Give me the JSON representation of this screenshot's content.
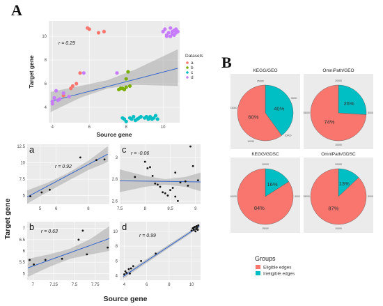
{
  "figure": {
    "label_a": "A",
    "label_b": "B",
    "bottom_xlabel": "Source gene",
    "bottom_ylabel": "Target gene"
  },
  "chart_data": [
    {
      "id": "main",
      "type": "scatter",
      "xlabel": "Source gene",
      "ylabel": "Target gene",
      "xlim": [
        3.8,
        10.9
      ],
      "ylim": [
        2.7,
        11.3
      ],
      "xticks": [
        4,
        6,
        8,
        10
      ],
      "yticks": [
        4,
        6,
        8,
        10
      ],
      "annotation": "r = 0.29",
      "legend_title": "Datasets",
      "legend_position": "right",
      "series": [
        {
          "name": "a",
          "color": "#f8766d",
          "points": [
            [
              5.9,
              10.7
            ],
            [
              6.0,
              10.6
            ],
            [
              6.5,
              10.3
            ],
            [
              6.8,
              10.4
            ],
            [
              5.0,
              5.6
            ],
            [
              5.1,
              5.8
            ],
            [
              5.3,
              6.0
            ],
            [
              5.5,
              6.9
            ],
            [
              4.6,
              5.0
            ]
          ]
        },
        {
          "name": "b",
          "color": "#7cae00",
          "points": [
            [
              7.6,
              5.5
            ],
            [
              7.7,
              5.6
            ],
            [
              7.8,
              5.6
            ],
            [
              7.9,
              5.5
            ],
            [
              8.0,
              6.4
            ],
            [
              8.1,
              7.0
            ],
            [
              8.2,
              5.8
            ],
            [
              8.0,
              5.7
            ]
          ]
        },
        {
          "name": "c",
          "color": "#00bfc4",
          "points": [
            [
              7.8,
              3.1
            ],
            [
              7.9,
              3.0
            ],
            [
              8.0,
              2.8
            ],
            [
              8.2,
              3.1
            ],
            [
              8.4,
              3.2
            ],
            [
              8.5,
              2.9
            ],
            [
              8.6,
              3.0
            ],
            [
              8.8,
              3.2
            ],
            [
              9.0,
              3.1
            ],
            [
              9.2,
              3.0
            ],
            [
              9.3,
              3.2
            ],
            [
              9.4,
              3.0
            ],
            [
              9.5,
              3.1
            ],
            [
              9.6,
              3.3
            ],
            [
              9.7,
              3.0
            ],
            [
              8.3,
              3.0
            ],
            [
              8.7,
              3.1
            ],
            [
              9.1,
              3.2
            ]
          ]
        },
        {
          "name": "d",
          "color": "#c77cff",
          "points": [
            [
              4.0,
              4.3
            ],
            [
              4.0,
              4.5
            ],
            [
              4.1,
              4.8
            ],
            [
              4.2,
              5.4
            ],
            [
              4.3,
              4.6
            ],
            [
              4.4,
              4.7
            ],
            [
              4.6,
              5.2
            ],
            [
              4.9,
              4.9
            ],
            [
              5.7,
              6.9
            ],
            [
              7.5,
              6.9
            ],
            [
              10.1,
              10.6
            ],
            [
              10.2,
              10.1
            ],
            [
              10.3,
              10.3
            ],
            [
              10.4,
              10.0
            ],
            [
              10.5,
              10.4
            ],
            [
              10.5,
              10.2
            ],
            [
              10.6,
              10.5
            ],
            [
              10.7,
              10.3
            ],
            [
              10.7,
              10.6
            ],
            [
              10.2,
              10.0
            ],
            [
              10.6,
              10.1
            ],
            [
              10.0,
              10.4
            ],
            [
              10.4,
              10.7
            ],
            [
              10.8,
              10.4
            ]
          ]
        }
      ],
      "fit_line": [
        [
          3.9,
          4.5
        ],
        [
          10.8,
          7.3
        ]
      ],
      "ci_band": {
        "x": [
          3.9,
          5.5,
          7.0,
          8.5,
          10.8
        ],
        "lower": [
          3.6,
          4.8,
          5.6,
          5.9,
          5.8
        ],
        "upper": [
          5.3,
          5.8,
          6.3,
          7.2,
          8.9
        ]
      }
    },
    {
      "id": "a",
      "type": "scatter",
      "xlim": [
        4.2,
        9.3
      ],
      "ylim": [
        3.7,
        12.8
      ],
      "xticks": [
        5,
        6,
        8
      ],
      "yticks": [
        5.0,
        7.5,
        10.0,
        12.5
      ],
      "annotation": "r = 0.92",
      "points": [
        [
          4.4,
          4.9
        ],
        [
          5.1,
          5.5
        ],
        [
          5.6,
          5.9
        ],
        [
          7.5,
          10.8
        ],
        [
          8.5,
          10.4
        ],
        [
          9.0,
          10.5
        ]
      ],
      "fit_line": [
        [
          4.2,
          4.8
        ],
        [
          9.2,
          11.3
        ]
      ],
      "ci_band": {
        "x": [
          4.2,
          5.5,
          6.7,
          8.0,
          9.2
        ],
        "lower": [
          3.8,
          5.6,
          7.2,
          8.9,
          10.1
        ],
        "upper": [
          5.8,
          7.0,
          8.4,
          10.3,
          12.5
        ]
      }
    },
    {
      "id": "b",
      "type": "scatter",
      "xlim": [
        6.93,
        7.92
      ],
      "ylim": [
        4.7,
        7.3
      ],
      "xticks": [
        7.0,
        7.25,
        7.5,
        7.75
      ],
      "yticks": [
        5.0,
        5.5,
        6.0,
        6.5,
        7.0
      ],
      "annotation": "r = 0.63",
      "points": [
        [
          6.96,
          5.6
        ],
        [
          7.01,
          5.4
        ],
        [
          7.15,
          5.6
        ],
        [
          7.35,
          5.65
        ],
        [
          7.55,
          6.5
        ],
        [
          7.6,
          6.9
        ],
        [
          7.65,
          5.85
        ],
        [
          7.9,
          6.15
        ]
      ],
      "fit_line": [
        [
          6.94,
          5.25
        ],
        [
          7.92,
          6.55
        ]
      ],
      "ci_band": {
        "x": [
          6.94,
          7.2,
          7.45,
          7.7,
          7.92
        ],
        "lower": [
          4.85,
          5.3,
          5.65,
          5.85,
          6.0
        ],
        "upper": [
          5.65,
          5.85,
          6.1,
          6.55,
          7.1
        ]
      }
    },
    {
      "id": "c",
      "type": "scatter",
      "xlim": [
        7.5,
        9.1
      ],
      "ylim": [
        2.57,
        3.12
      ],
      "xticks": [
        7.5,
        8.0,
        8.5,
        9.0
      ],
      "yticks": [
        2.6,
        2.8,
        3.0
      ],
      "annotation": "r = -0.06",
      "points": [
        [
          7.8,
          2.82
        ],
        [
          8.0,
          2.96
        ],
        [
          8.1,
          2.91
        ],
        [
          8.15,
          2.83
        ],
        [
          8.2,
          2.76
        ],
        [
          8.25,
          2.75
        ],
        [
          8.3,
          2.73
        ],
        [
          8.35,
          2.68
        ],
        [
          8.4,
          2.67
        ],
        [
          8.45,
          2.65
        ],
        [
          8.5,
          2.7
        ],
        [
          8.55,
          2.72
        ],
        [
          8.6,
          2.64
        ],
        [
          8.65,
          2.6
        ],
        [
          8.7,
          2.77
        ],
        [
          8.8,
          2.78
        ],
        [
          8.85,
          2.74
        ],
        [
          8.9,
          3.1
        ],
        [
          8.95,
          2.92
        ],
        [
          9.05,
          2.79
        ],
        [
          8.6,
          2.86
        ],
        [
          8.05,
          2.9
        ]
      ],
      "fit_line": [
        [
          7.5,
          2.785
        ],
        [
          9.1,
          2.775
        ]
      ],
      "ci_band": {
        "x": [
          7.5,
          8.0,
          8.4,
          8.8,
          9.1
        ],
        "lower": [
          2.68,
          2.73,
          2.75,
          2.73,
          2.69
        ],
        "upper": [
          2.89,
          2.83,
          2.8,
          2.82,
          2.86
        ]
      }
    },
    {
      "id": "d",
      "type": "scatter",
      "xlim": [
        3.6,
        10.8
      ],
      "ylim": [
        3.4,
        11.3
      ],
      "xticks": [
        4,
        6,
        8,
        10
      ],
      "yticks": [
        4,
        6,
        8,
        10
      ],
      "annotation": "r = 0.99",
      "points": [
        [
          4.0,
          4.2
        ],
        [
          4.1,
          4.6
        ],
        [
          4.2,
          4.4
        ],
        [
          4.4,
          4.9
        ],
        [
          4.5,
          4.3
        ],
        [
          4.6,
          5.0
        ],
        [
          4.8,
          5.3
        ],
        [
          5.5,
          6.0
        ],
        [
          6.8,
          7.0
        ],
        [
          10.0,
          10.1
        ],
        [
          10.1,
          10.4
        ],
        [
          10.2,
          10.2
        ],
        [
          10.3,
          10.6
        ],
        [
          10.4,
          10.3
        ],
        [
          10.45,
          10.7
        ],
        [
          10.5,
          10.5
        ],
        [
          10.55,
          10.2
        ],
        [
          10.6,
          10.8
        ],
        [
          10.2,
          10.5
        ],
        [
          10.35,
          10.0
        ]
      ],
      "fit_line": [
        [
          3.9,
          3.9
        ],
        [
          10.7,
          10.7
        ]
      ],
      "ci_band": {
        "x": [
          3.9,
          10.7
        ],
        "lower": [
          3.6,
          10.5
        ],
        "upper": [
          4.2,
          10.9
        ]
      }
    },
    {
      "id": "pies",
      "type": "pie",
      "legend_title": "Groups",
      "legend_position": "bottom",
      "legend": [
        {
          "name": "Eligible edges",
          "color": "#f8766d"
        },
        {
          "name": "Ineligible edges",
          "color": "#00bfc4"
        }
      ],
      "charts": [
        {
          "title": "KEGG/GEO",
          "slices": [
            {
              "name": "Eligible edges",
              "value": 60,
              "label": "60%"
            },
            {
              "name": "Ineligible edges",
              "value": 40,
              "label": "40%"
            }
          ],
          "ticks": [
            "25000",
            "5000",
            "20000",
            "10000",
            "15000"
          ]
        },
        {
          "title": "OmniPath/GEO",
          "slices": [
            {
              "name": "Eligible edges",
              "value": 74,
              "label": "74%"
            },
            {
              "name": "Ineligible edges",
              "value": 26,
              "label": "26%"
            }
          ],
          "ticks": [
            "20000",
            "5000",
            "10000",
            "15000"
          ]
        },
        {
          "title": "KEGG/GDSC",
          "slices": [
            {
              "name": "Eligible edges",
              "value": 84,
              "label": "84%"
            },
            {
              "name": "Ineligible edges",
              "value": 16,
              "label": "16%"
            }
          ],
          "ticks": [
            "20000",
            "5000",
            "15000",
            "10000"
          ]
        },
        {
          "title": "OmniPath/GDSC",
          "slices": [
            {
              "name": "Eligible edges",
              "value": 87,
              "label": "87%"
            },
            {
              "name": "Ineligible edges",
              "value": 13,
              "label": "13%"
            }
          ],
          "ticks": [
            "20000",
            "5000",
            "10000",
            "15000"
          ]
        }
      ]
    }
  ]
}
